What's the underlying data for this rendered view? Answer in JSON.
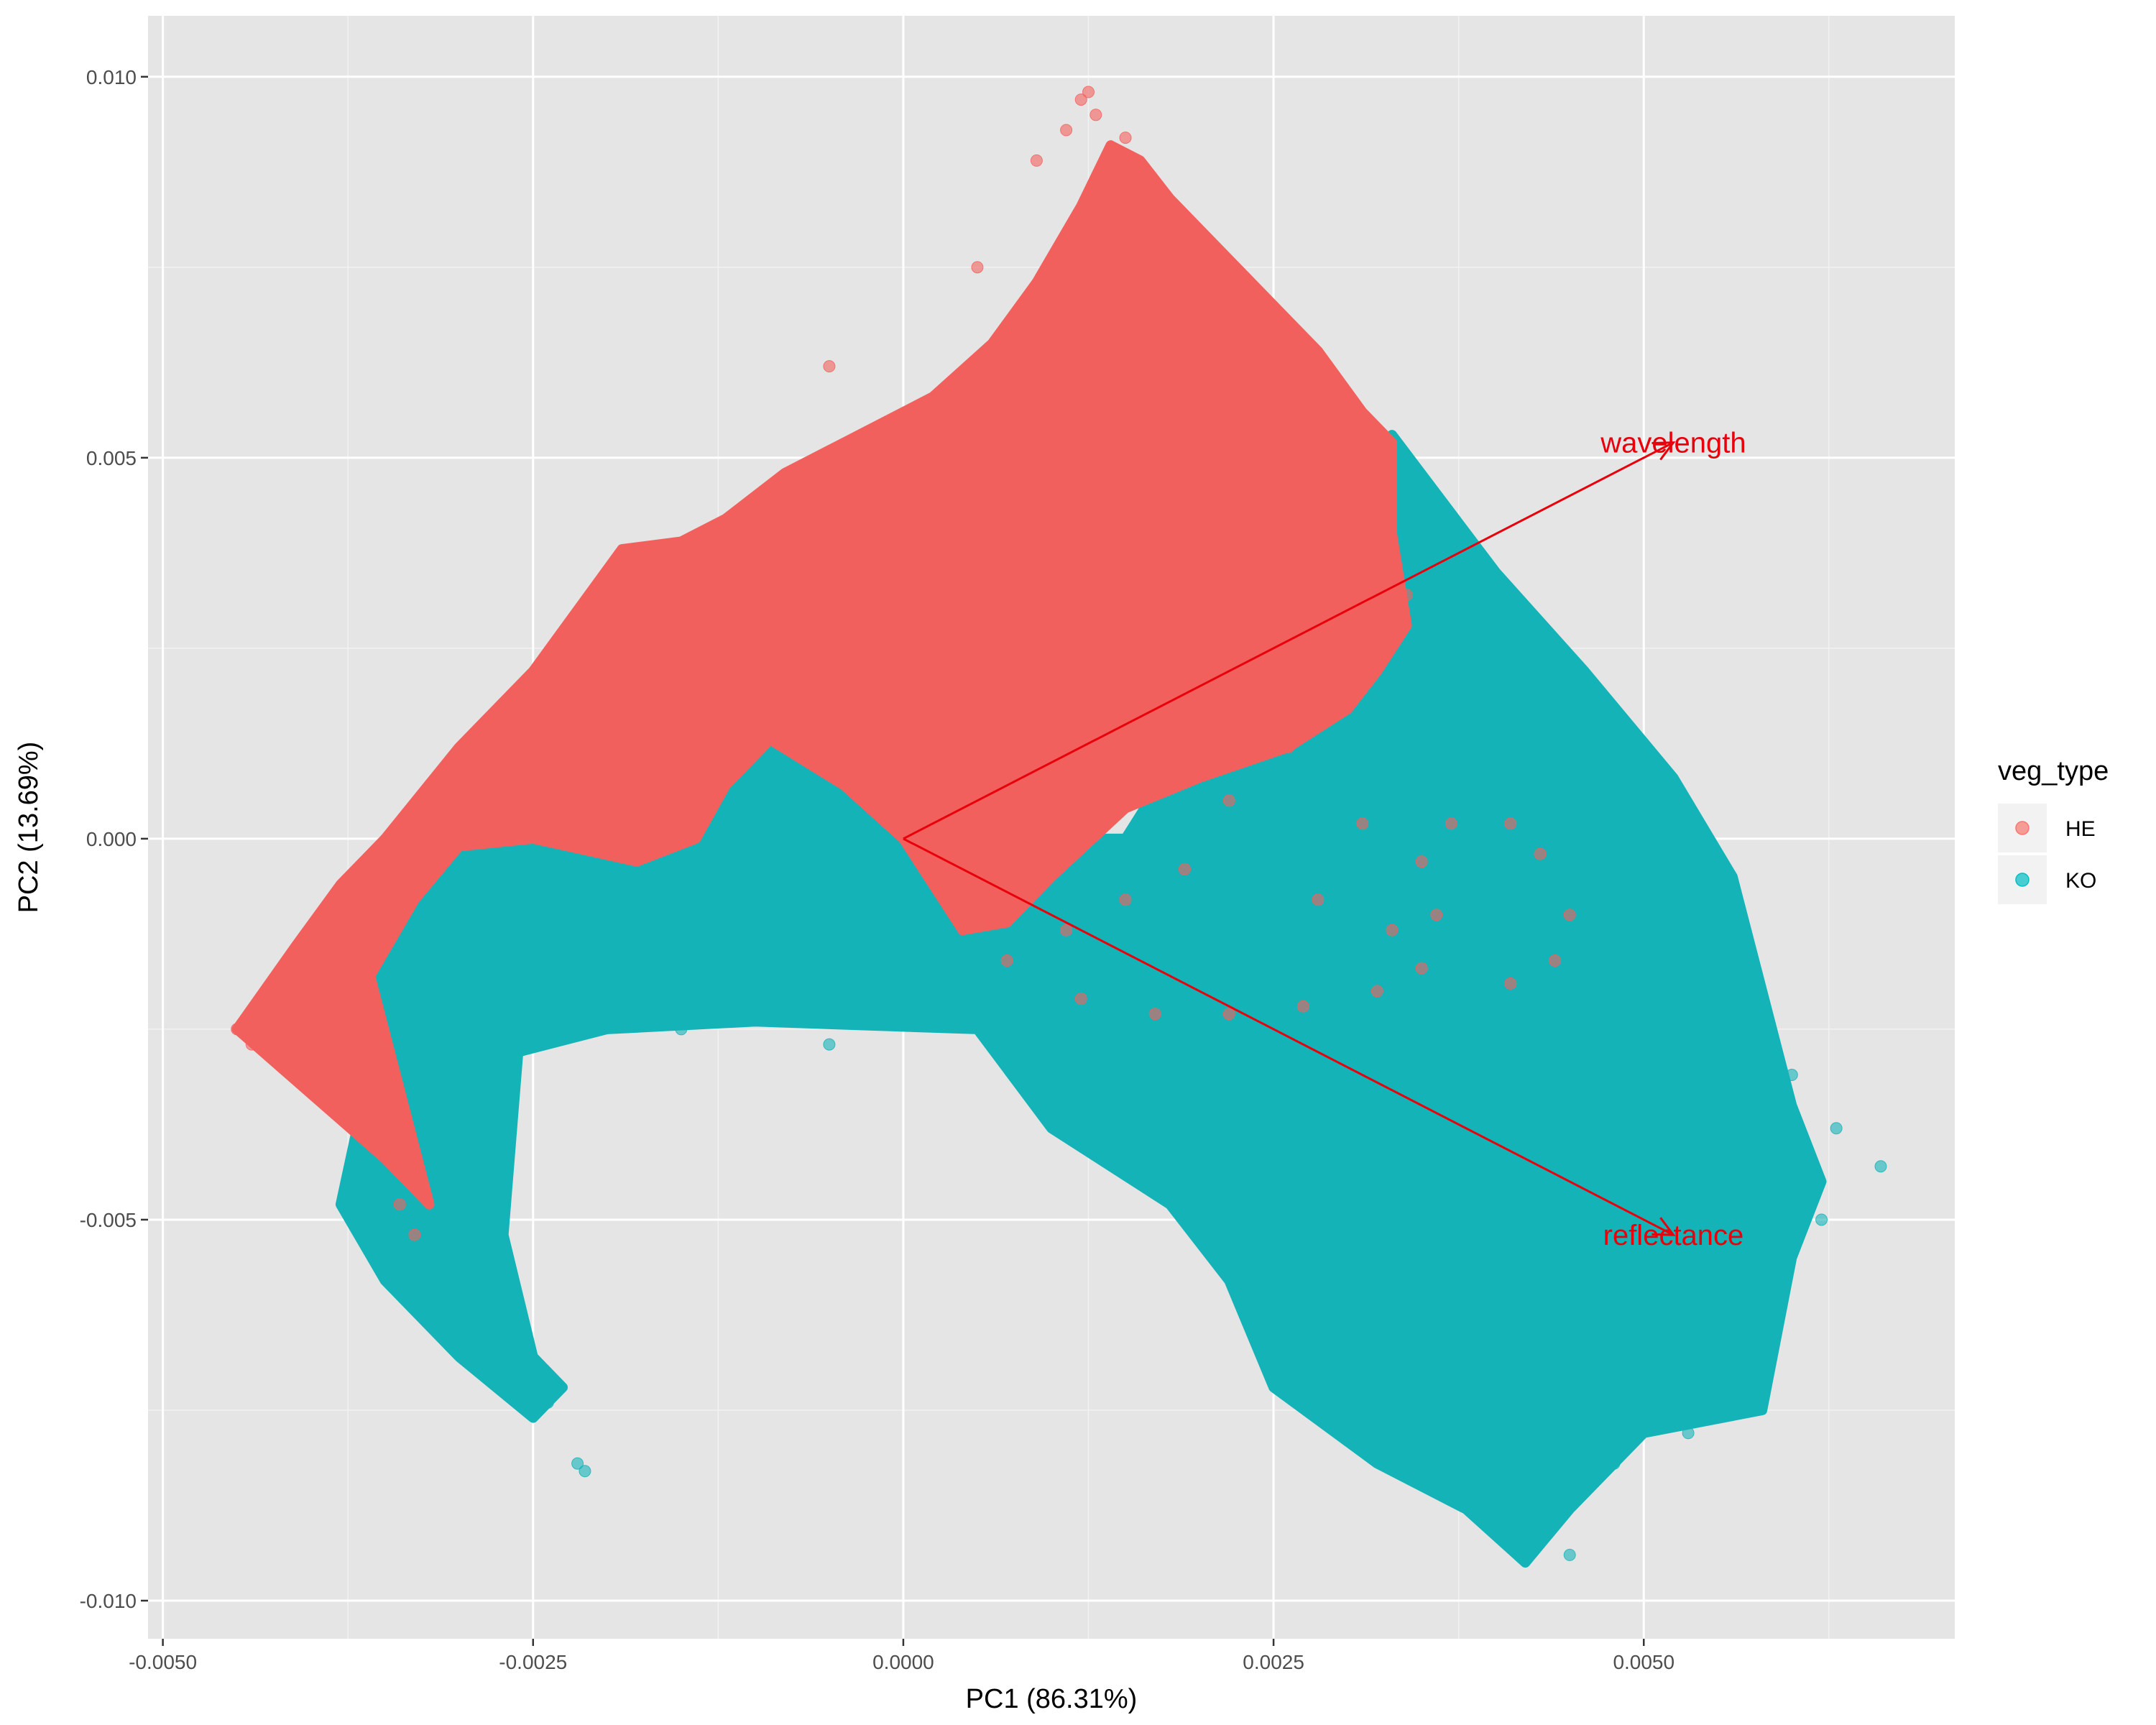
{
  "chart_data": {
    "type": "scatter",
    "title": "",
    "xlabel": "PC1 (86.31%)",
    "ylabel": "PC2 (13.69%)",
    "xlim": [
      -0.0051,
      0.0071
    ],
    "ylim": [
      -0.0105,
      0.0108
    ],
    "x_ticks": [
      -0.005,
      -0.0025,
      0.0,
      0.0025,
      0.005
    ],
    "x_tick_labels": [
      "-0.0050",
      "-0.0025",
      "0.0000",
      "0.0025",
      "0.0050"
    ],
    "y_ticks": [
      -0.01,
      -0.005,
      0.0,
      0.005,
      0.01
    ],
    "y_tick_labels": [
      "-0.010",
      "-0.005",
      "0.000",
      "0.005",
      "0.010"
    ],
    "grid": true,
    "legend": {
      "title": "veg_type",
      "placement": "right",
      "entries": [
        {
          "label": "HE",
          "color": "#F8766D"
        },
        {
          "label": "KO",
          "color": "#00BFC4"
        }
      ]
    },
    "series": [
      {
        "name": "KO",
        "color": "#14B3B8",
        "region": [
          [
            -0.0035,
            0.0
          ],
          [
            -0.003,
            0.0002
          ],
          [
            -0.0025,
            0.0004
          ],
          [
            -0.002,
            0.0003
          ],
          [
            -0.0014,
            0.0
          ],
          [
            -0.0009,
            0.0013
          ],
          [
            -0.0005,
            0.0008
          ],
          [
            0.0,
            0.0
          ],
          [
            0.0015,
            0.0
          ],
          [
            0.0028,
            0.004
          ],
          [
            0.0033,
            0.0053
          ],
          [
            0.004,
            0.0035
          ],
          [
            0.0046,
            0.0022
          ],
          [
            0.0052,
            0.0008
          ],
          [
            0.0056,
            -0.0005
          ],
          [
            0.0058,
            -0.002
          ],
          [
            0.006,
            -0.0035
          ],
          [
            0.0062,
            -0.0045
          ],
          [
            0.006,
            -0.0055
          ],
          [
            0.0059,
            -0.0065
          ],
          [
            0.0058,
            -0.0075
          ],
          [
            0.005,
            -0.0078
          ],
          [
            0.0045,
            -0.0088
          ],
          [
            0.0042,
            -0.0095
          ],
          [
            0.0038,
            -0.0088
          ],
          [
            0.0032,
            -0.0082
          ],
          [
            0.0025,
            -0.0072
          ],
          [
            0.0022,
            -0.0058
          ],
          [
            0.0018,
            -0.0048
          ],
          [
            0.001,
            -0.0038
          ],
          [
            0.0005,
            -0.0025
          ],
          [
            -0.001,
            -0.0024
          ],
          [
            -0.002,
            -0.0025
          ],
          [
            -0.0026,
            -0.0028
          ],
          [
            -0.0027,
            -0.0052
          ],
          [
            -0.0025,
            -0.0068
          ],
          [
            -0.0023,
            -0.0072
          ],
          [
            -0.0025,
            -0.0076
          ],
          [
            -0.003,
            -0.0068
          ],
          [
            -0.0035,
            -0.0058
          ],
          [
            -0.0038,
            -0.0048
          ],
          [
            -0.0036,
            -0.003
          ],
          [
            -0.0036,
            -0.0012
          ]
        ],
        "points": [
          [
            -0.0022,
            -0.0082
          ],
          [
            -0.00215,
            -0.0083
          ],
          [
            -0.0024,
            -0.0074
          ],
          [
            -0.0026,
            -0.0066
          ],
          [
            0.0028,
            -0.0058
          ],
          [
            0.0031,
            -0.0066
          ],
          [
            0.0035,
            -0.0074
          ],
          [
            0.0038,
            -0.008
          ],
          [
            0.0041,
            -0.0092
          ],
          [
            0.0045,
            -0.0094
          ],
          [
            0.0048,
            -0.0082
          ],
          [
            0.0053,
            -0.0078
          ],
          [
            0.0056,
            -0.0068
          ],
          [
            0.0059,
            -0.0058
          ],
          [
            0.0062,
            -0.005
          ],
          [
            0.0066,
            -0.0043
          ],
          [
            0.0063,
            -0.0038
          ],
          [
            0.006,
            -0.0031
          ],
          [
            0.0058,
            -0.0024
          ],
          [
            0.0054,
            -0.0016
          ],
          [
            0.0048,
            -0.0045
          ],
          [
            0.0052,
            -0.0062
          ],
          [
            0.0047,
            -0.007
          ],
          [
            0.0043,
            -0.0085
          ],
          [
            0.0034,
            -0.0068
          ],
          [
            0.0029,
            -0.0052
          ],
          [
            0.002,
            -0.0045
          ],
          [
            0.0011,
            -0.0035
          ],
          [
            0.0008,
            -0.0031
          ],
          [
            -0.0005,
            -0.0027
          ],
          [
            -0.0015,
            -0.0025
          ],
          [
            -0.0028,
            -0.0044
          ],
          [
            -0.0027,
            -0.0057
          ],
          [
            -0.0031,
            -0.0053
          ],
          [
            -0.0029,
            -0.0048
          ],
          [
            0.0024,
            -0.0062
          ],
          [
            0.0037,
            -0.0076
          ],
          [
            0.0044,
            -0.0089
          ],
          [
            0.0055,
            -0.0073
          ],
          [
            0.006,
            -0.0046
          ]
        ]
      },
      {
        "name": "HE",
        "color": "#F2605E",
        "region": [
          [
            -0.0045,
            -0.0025
          ],
          [
            -0.0041,
            -0.0014
          ],
          [
            -0.0038,
            -0.0006
          ],
          [
            -0.0035,
            0.0
          ],
          [
            -0.003,
            0.0012
          ],
          [
            -0.0025,
            0.0022
          ],
          [
            -0.0019,
            0.0038
          ],
          [
            -0.0015,
            0.0039
          ],
          [
            -0.0012,
            0.0042
          ],
          [
            -0.0008,
            0.0048
          ],
          [
            -0.0004,
            0.0052
          ],
          [
            0.0002,
            0.0058
          ],
          [
            0.0006,
            0.0065
          ],
          [
            0.0009,
            0.0073
          ],
          [
            0.0012,
            0.0083
          ],
          [
            0.0014,
            0.0091
          ],
          [
            0.0016,
            0.0089
          ],
          [
            0.0018,
            0.0084
          ],
          [
            0.0024,
            0.0072
          ],
          [
            0.0028,
            0.0064
          ],
          [
            0.0031,
            0.0056
          ],
          [
            0.0033,
            0.0052
          ],
          [
            0.0033,
            0.004
          ],
          [
            0.0034,
            0.0028
          ],
          [
            0.0032,
            0.0022
          ],
          [
            0.003,
            0.0017
          ],
          [
            0.0026,
            0.0012
          ],
          [
            0.002,
            0.0008
          ],
          [
            0.0015,
            0.0004
          ],
          [
            0.001,
            -0.0005
          ],
          [
            0.0007,
            -0.0011
          ],
          [
            0.0004,
            -0.0012
          ],
          [
            0.0,
            0.0
          ],
          [
            -0.0004,
            0.0007
          ],
          [
            -0.0009,
            0.0013
          ],
          [
            -0.0012,
            0.0007
          ],
          [
            -0.0014,
            0.0
          ],
          [
            -0.0018,
            -0.0003
          ],
          [
            -0.0025,
            0.0
          ],
          [
            -0.003,
            -0.0001
          ],
          [
            -0.0033,
            -0.0008
          ],
          [
            -0.0036,
            -0.0018
          ],
          [
            -0.0034,
            -0.0033
          ],
          [
            -0.0032,
            -0.0048
          ],
          [
            -0.0035,
            -0.0042
          ]
        ],
        "points": [
          [
            0.0009,
            0.0089
          ],
          [
            0.0011,
            0.0093
          ],
          [
            0.0012,
            0.0097
          ],
          [
            0.00125,
            0.0098
          ],
          [
            0.0013,
            0.0095
          ],
          [
            0.0015,
            0.0092
          ],
          [
            0.0005,
            0.0075
          ],
          [
            -0.0005,
            0.0062
          ],
          [
            0.003,
            0.0022
          ],
          [
            0.0032,
            0.0026
          ],
          [
            0.0034,
            0.0032
          ],
          [
            0.0029,
            0.0018
          ],
          [
            0.0025,
            0.0015
          ],
          [
            0.0022,
            0.0005
          ],
          [
            0.0019,
            -0.0004
          ],
          [
            0.0015,
            -0.0008
          ],
          [
            0.0011,
            -0.0012
          ],
          [
            0.0007,
            -0.0016
          ],
          [
            0.0012,
            -0.0021
          ],
          [
            0.0017,
            -0.0023
          ],
          [
            0.0022,
            -0.0023
          ],
          [
            0.0027,
            -0.0022
          ],
          [
            0.0032,
            -0.002
          ],
          [
            0.0035,
            -0.0017
          ],
          [
            0.0036,
            -0.001
          ],
          [
            0.0035,
            -0.0003
          ],
          [
            0.0037,
            0.0002
          ],
          [
            0.0041,
            0.0002
          ],
          [
            0.0043,
            -0.0002
          ],
          [
            0.0045,
            -0.001
          ],
          [
            0.0044,
            -0.0016
          ],
          [
            0.0041,
            -0.0019
          ],
          [
            -0.0033,
            -0.0052
          ],
          [
            -0.0034,
            -0.0048
          ],
          [
            -0.0045,
            -0.0025
          ],
          [
            -0.0044,
            -0.0027
          ],
          [
            0.0026,
            0.0012
          ],
          [
            0.0031,
            0.0002
          ],
          [
            0.0028,
            -0.0008
          ],
          [
            0.0033,
            -0.0012
          ]
        ]
      }
    ],
    "biplot_arrows": [
      {
        "label": "wavelength",
        "x": 0.0052,
        "y": 0.0052,
        "color": "#E8000B"
      },
      {
        "label": "reflectance",
        "x": 0.0052,
        "y": -0.0052,
        "color": "#E8000B"
      }
    ]
  }
}
